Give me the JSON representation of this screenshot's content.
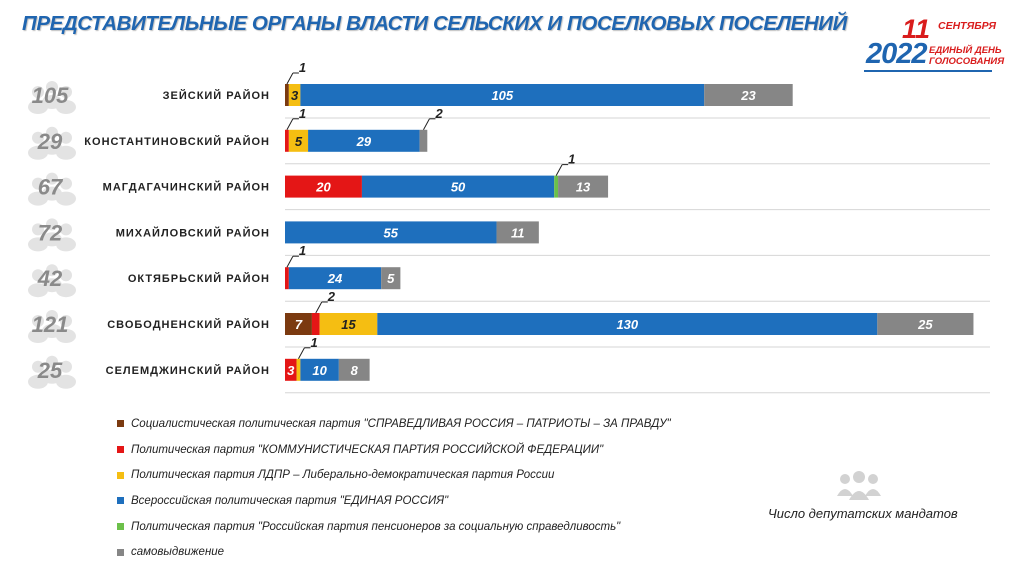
{
  "title": "ПРЕДСТАВИТЕЛЬНЫЕ ОРГАНЫ ВЛАСТИ СЕЛЬСКИХ И ПОСЕЛКОВЫХ ПОСЕЛЕНИЙ",
  "logo": {
    "day": "11",
    "month": "СЕНТЯБРЯ",
    "year": "2022",
    "line1": "ЕДИНЫЙ ДЕНЬ",
    "line2": "ГОЛОСОВАНИЯ"
  },
  "note": "Число депутатских мандатов",
  "colors": {
    "title": "#1f65b0",
    "sr": "#7b3a10",
    "kprf": "#e41616",
    "ldpr": "#f5be12",
    "er": "#1e6fbd",
    "rpps": "#6cc04a",
    "self": "#868686"
  },
  "chart_data": {
    "type": "bar",
    "orientation": "horizontal",
    "stacked": true,
    "categories": [
      "ЗЕЙСКИЙ РАЙОН",
      "КОНСТАНТИНОВСКИЙ РАЙОН",
      "МАГДАГАЧИНСКИЙ РАЙОН",
      "МИХАЙЛОВСКИЙ РАЙОН",
      "ОКТЯБРЬСКИЙ РАЙОН",
      "СВОБОДНЕНСКИЙ РАЙОН",
      "СЕЛЕМДЖИНСКИЙ РАЙОН"
    ],
    "series": [
      {
        "name": "Социалистическая политическая партия \"СПРАВЕДЛИВАЯ РОССИЯ – ПАТРИОТЫ – ЗА ПРАВДУ\"",
        "key": "sr",
        "values": [
          1,
          0,
          0,
          0,
          0,
          7,
          0
        ]
      },
      {
        "name": "Политическая партия \"КОММУНИСТИЧЕСКАЯ ПАРТИЯ РОССИЙСКОЙ ФЕДЕРАЦИИ\"",
        "key": "kprf",
        "values": [
          0,
          1,
          20,
          0,
          1,
          2,
          3
        ]
      },
      {
        "name": "Политическая партия ЛДПР – Либерально-демократическая партия России",
        "key": "ldpr",
        "values": [
          3,
          5,
          0,
          0,
          0,
          15,
          1
        ]
      },
      {
        "name": "Всероссийская политическая партия \"ЕДИНАЯ РОССИЯ\"",
        "key": "er",
        "values": [
          105,
          29,
          50,
          55,
          24,
          130,
          10
        ]
      },
      {
        "name": "Политическая партия \"Российская партия пенсионеров за социальную справедливость\"",
        "key": "rpps",
        "values": [
          0,
          0,
          1,
          0,
          0,
          0,
          0
        ]
      },
      {
        "name": "самовыдвижение",
        "key": "self",
        "values": [
          23,
          2,
          13,
          11,
          5,
          25,
          8
        ]
      }
    ],
    "badges": [
      "105",
      "29",
      "67",
      "72",
      "42",
      "121",
      "25"
    ],
    "xlim": [
      0,
      182
    ],
    "grid": false,
    "legend_position": "bottom-left"
  }
}
